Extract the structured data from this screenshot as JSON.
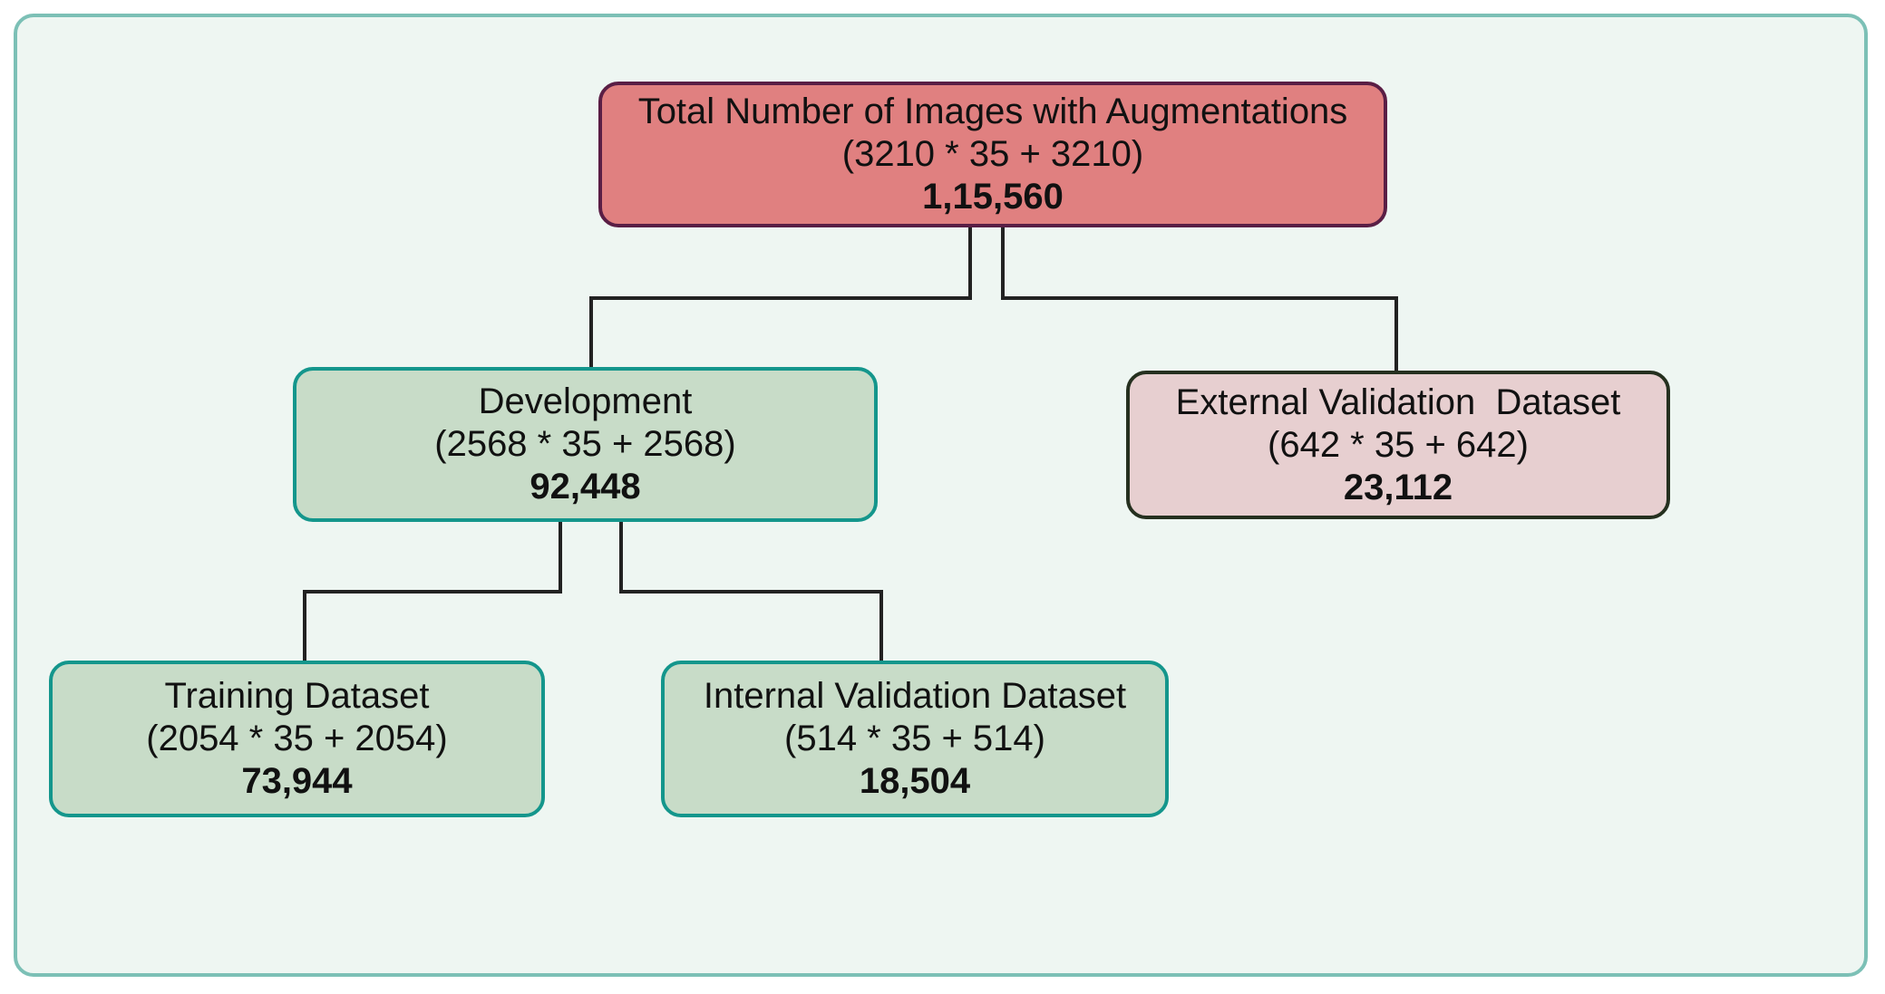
{
  "nodes": {
    "root": {
      "title": "Total Number of Images with Augmentations",
      "formula": "(3210 * 35 + 3210)",
      "value": "1,15,560",
      "fill": "#e08080",
      "border": "#5a1e45"
    },
    "development": {
      "title": "Development",
      "formula": "(2568 * 35 + 2568)",
      "value": "92,448",
      "fill": "#c8dcc8",
      "border": "#14968c"
    },
    "external": {
      "title": "External Validation  Dataset",
      "formula": "(642 * 35 + 642)",
      "value": "23,112",
      "fill": "#e7cfd0",
      "border": "#25301f"
    },
    "training": {
      "title": "Training Dataset",
      "formula": "(2054 * 35 + 2054)",
      "value": "73,944",
      "fill": "#c8dcc8",
      "border": "#14968c"
    },
    "internal": {
      "title": "Internal Validation Dataset",
      "formula": "(514 * 35 + 514)",
      "value": "18,504",
      "fill": "#c8dcc8",
      "border": "#14968c"
    }
  },
  "colors": {
    "background": "#eef6f2",
    "frame_border": "#7cc0b6",
    "connector": "#222222"
  }
}
